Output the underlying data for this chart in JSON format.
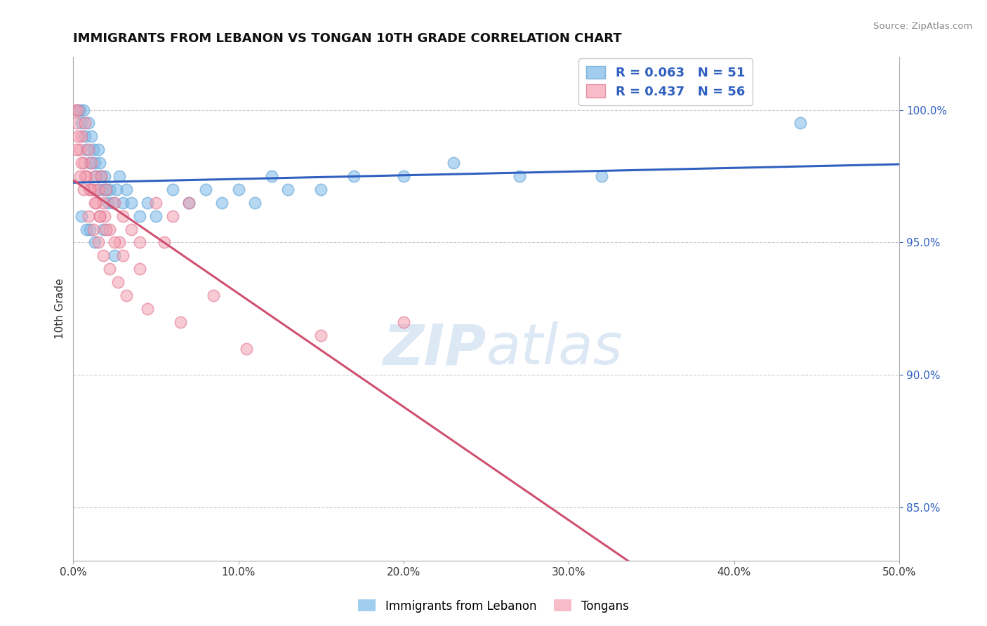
{
  "title": "IMMIGRANTS FROM LEBANON VS TONGAN 10TH GRADE CORRELATION CHART",
  "source_text": "Source: ZipAtlas.com",
  "ylabel": "10th Grade",
  "xlim": [
    0.0,
    50.0
  ],
  "ylim": [
    83.0,
    102.0
  ],
  "x_ticks": [
    0.0,
    10.0,
    20.0,
    30.0,
    40.0,
    50.0
  ],
  "x_tick_labels": [
    "0.0%",
    "10.0%",
    "20.0%",
    "30.0%",
    "40.0%",
    "50.0%"
  ],
  "y_ticks": [
    85.0,
    90.0,
    95.0,
    100.0
  ],
  "y_tick_labels": [
    "85.0%",
    "90.0%",
    "95.0%",
    "100.0%"
  ],
  "series1_name": "Immigrants from Lebanon",
  "series1_color": "#7ab8e8",
  "series1_edge": "#5a9fd4",
  "series2_name": "Tongans",
  "series2_color": "#f4a0b0",
  "series2_edge": "#e07090",
  "series1_R": 0.063,
  "series1_N": 51,
  "series2_R": 0.437,
  "series2_N": 56,
  "legend_text_color": "#3060c0",
  "trendline1_color": "#3060c0",
  "trendline2_color": "#d05070",
  "background_color": "#ffffff",
  "grid_color": "#cccccc",
  "watermark_color": "#dde8f5",
  "title_fontsize": 13,
  "series1_x": [
    0.3,
    0.4,
    0.5,
    0.6,
    0.7,
    0.8,
    0.9,
    1.0,
    1.1,
    1.2,
    1.3,
    1.4,
    1.5,
    1.5,
    1.6,
    1.7,
    1.8,
    1.9,
    2.0,
    2.1,
    2.2,
    2.4,
    2.6,
    2.8,
    3.0,
    3.2,
    3.5,
    4.0,
    4.5,
    5.0,
    6.0,
    7.0,
    8.0,
    9.0,
    10.0,
    11.0,
    12.0,
    13.0,
    15.0,
    17.0,
    20.0,
    23.0,
    27.0,
    32.0,
    44.0,
    0.5,
    0.8,
    1.0,
    1.3,
    1.8,
    2.5
  ],
  "series1_y": [
    100.0,
    100.0,
    99.5,
    100.0,
    99.0,
    98.5,
    99.5,
    98.0,
    99.0,
    98.5,
    98.0,
    97.5,
    98.5,
    97.0,
    98.0,
    97.5,
    97.0,
    97.5,
    97.0,
    96.5,
    97.0,
    96.5,
    97.0,
    97.5,
    96.5,
    97.0,
    96.5,
    96.0,
    96.5,
    96.0,
    97.0,
    96.5,
    97.0,
    96.5,
    97.0,
    96.5,
    97.5,
    97.0,
    97.0,
    97.5,
    97.5,
    98.0,
    97.5,
    97.5,
    99.5,
    96.0,
    95.5,
    95.5,
    95.0,
    95.5,
    94.5
  ],
  "series2_x": [
    0.1,
    0.2,
    0.3,
    0.4,
    0.5,
    0.6,
    0.7,
    0.8,
    0.9,
    1.0,
    1.1,
    1.2,
    1.3,
    1.4,
    1.5,
    1.6,
    1.7,
    1.8,
    1.9,
    2.0,
    2.2,
    2.5,
    2.8,
    3.0,
    3.5,
    4.0,
    5.0,
    6.0,
    0.3,
    0.5,
    0.7,
    1.0,
    1.3,
    1.6,
    2.0,
    2.5,
    3.0,
    4.0,
    5.5,
    7.0,
    0.2,
    0.4,
    0.6,
    0.9,
    1.2,
    1.5,
    1.8,
    2.2,
    2.7,
    3.2,
    4.5,
    6.5,
    8.5,
    10.5,
    15.0,
    20.0
  ],
  "series2_y": [
    100.0,
    99.5,
    100.0,
    98.5,
    99.0,
    98.0,
    99.5,
    97.5,
    98.5,
    97.0,
    98.0,
    97.0,
    97.5,
    96.5,
    97.0,
    96.0,
    97.5,
    96.5,
    96.0,
    97.0,
    95.5,
    96.5,
    95.0,
    96.0,
    95.5,
    95.0,
    96.5,
    96.0,
    99.0,
    98.0,
    97.5,
    97.0,
    96.5,
    96.0,
    95.5,
    95.0,
    94.5,
    94.0,
    95.0,
    96.5,
    98.5,
    97.5,
    97.0,
    96.0,
    95.5,
    95.0,
    94.5,
    94.0,
    93.5,
    93.0,
    92.5,
    92.0,
    93.0,
    91.0,
    91.5,
    92.0
  ]
}
